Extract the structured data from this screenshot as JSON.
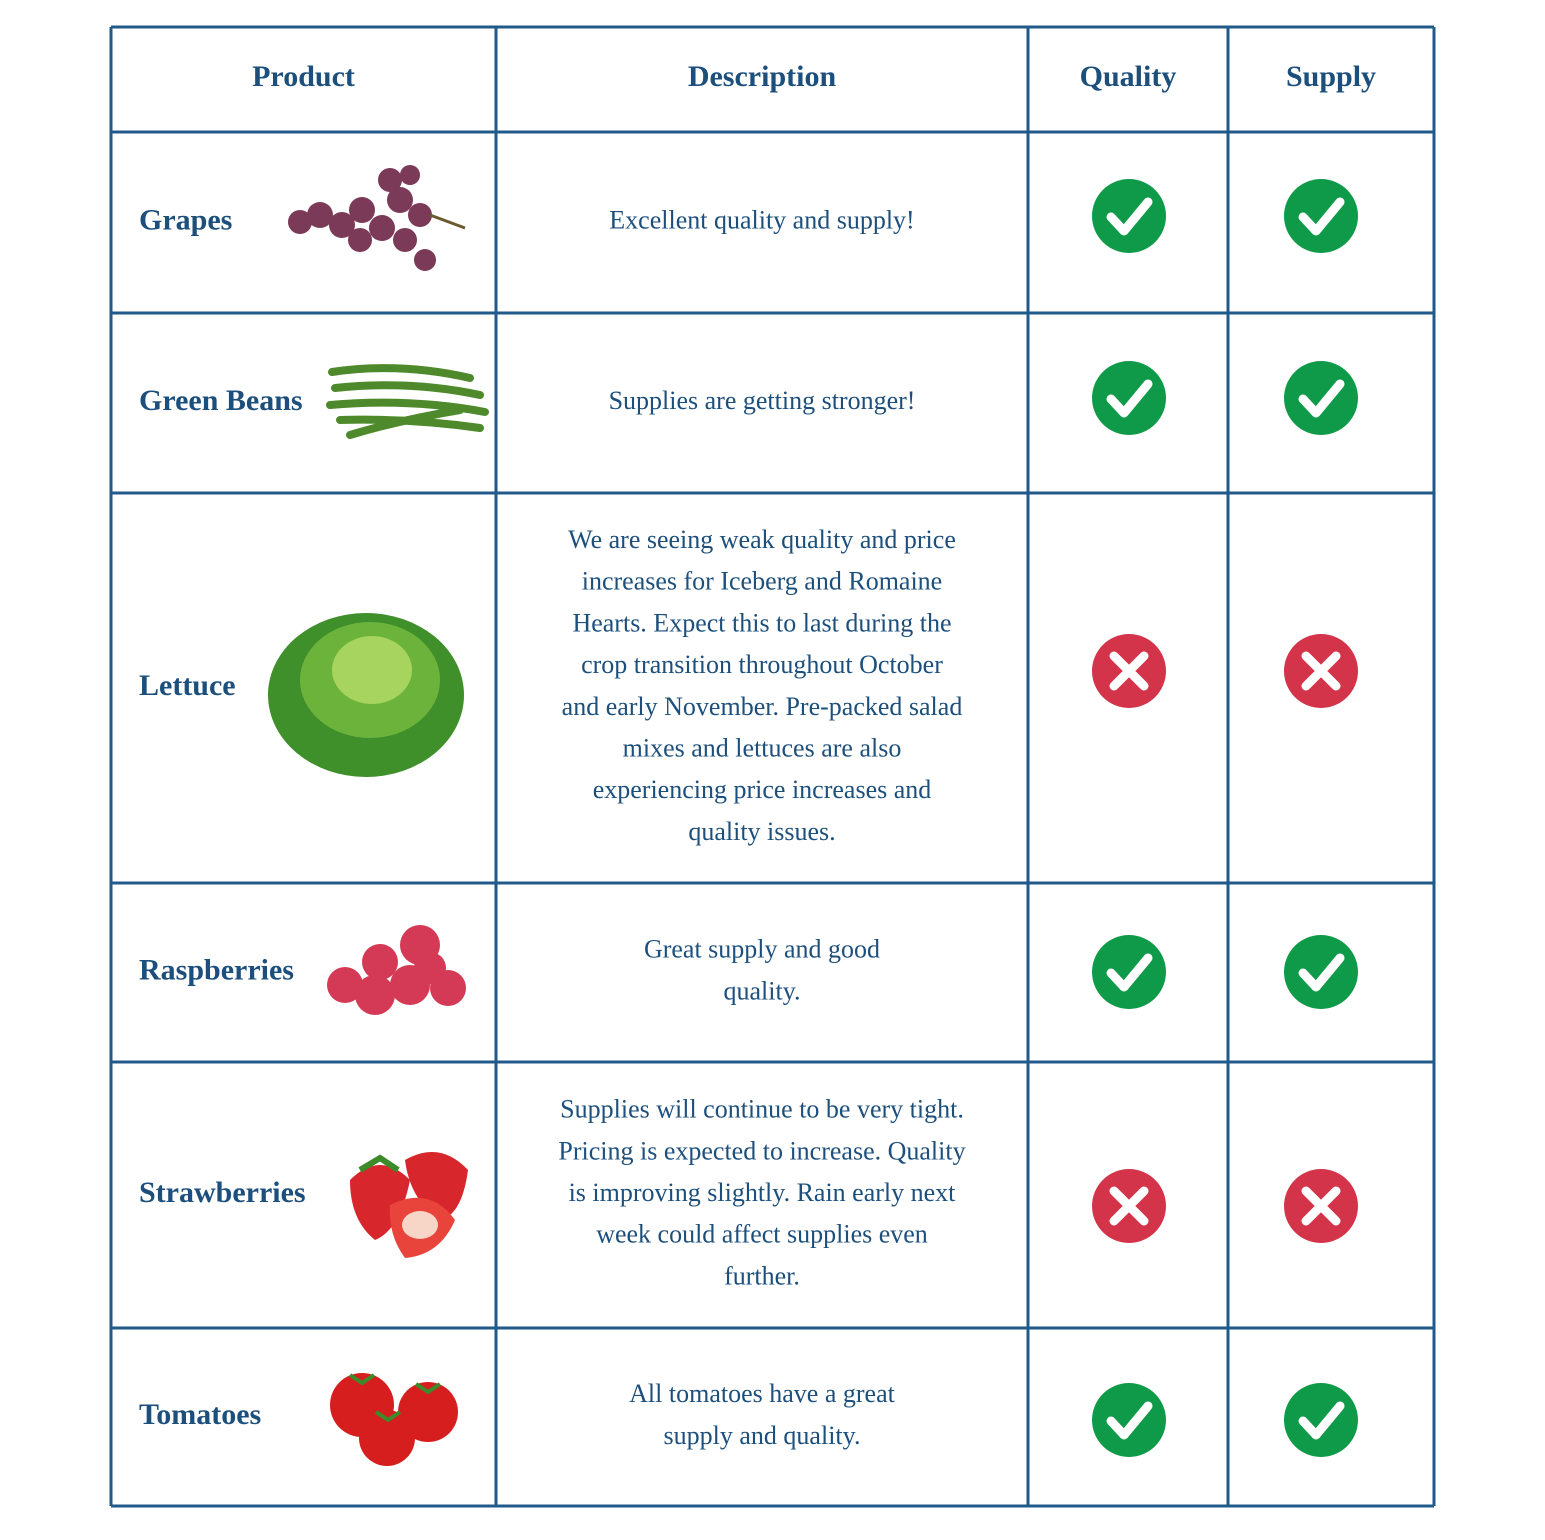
{
  "table": {
    "header": [
      "Product",
      "Description",
      "Quality",
      "Supply"
    ],
    "rows": [
      {
        "product": "Grapes",
        "description": [
          "Excellent quality and supply!"
        ],
        "quality": true,
        "supply": true
      },
      {
        "product": "Green Beans",
        "description": [
          "Supplies are getting stronger!"
        ],
        "quality": true,
        "supply": true
      },
      {
        "product": "Lettuce",
        "description": [
          "We are seeing weak quality and price",
          "increases for Iceberg and Romaine",
          "Hearts. Expect this to last during the",
          "crop transition throughout October",
          "and early November. Pre-packed salad",
          "mixes and lettuces are also",
          "experiencing price increases and",
          "quality issues."
        ],
        "quality": false,
        "supply": false
      },
      {
        "product": "Raspberries",
        "description": [
          "Great supply and good",
          "quality."
        ],
        "quality": true,
        "supply": true
      },
      {
        "product": "Strawberries",
        "description": [
          "Supplies will continue to be very tight.",
          "Pricing is expected to increase. Quality",
          "is improving slightly. Rain early next",
          "week could affect supplies even",
          "further."
        ],
        "quality": false,
        "supply": false
      },
      {
        "product": "Tomatoes",
        "description": [
          "All tomatoes have a great",
          "supply and quality."
        ],
        "quality": true,
        "supply": true
      }
    ]
  }
}
